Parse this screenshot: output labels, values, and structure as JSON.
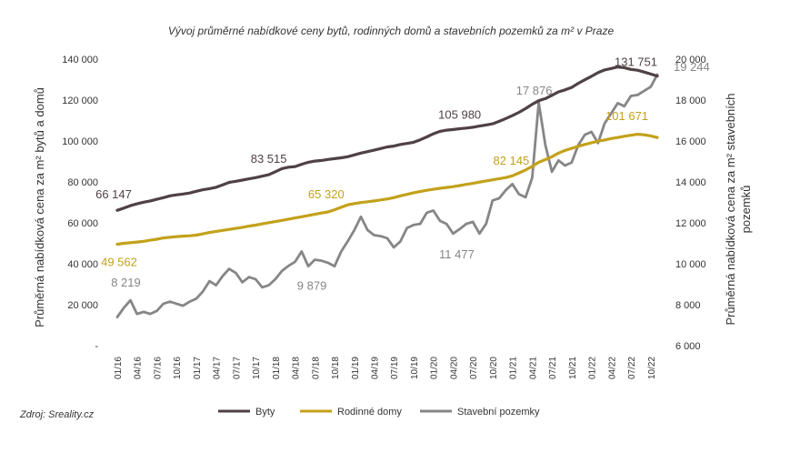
{
  "chart_data": {
    "type": "line",
    "title": "Vývoj průměrné nabídkové ceny bytů, rodinných domů a stavebních pozemků za m² v Praze",
    "source": "Zdroj: Sreality.cz",
    "left_axis": {
      "label": "Průměrná nabídková cena za m² bytů a domů",
      "ylim": [
        0,
        140000
      ],
      "ticks": [
        "-",
        "20 000",
        "40 000",
        "60 000",
        "80 000",
        "100 000",
        "120 000",
        "140 000"
      ]
    },
    "right_axis": {
      "label_line1": "Průměrná nabídková cena za m² stavebních",
      "label_line2": "pozemků",
      "ylim": [
        6000,
        20000
      ],
      "ticks": [
        "6 000",
        "8 000",
        "10 000",
        "12 000",
        "14 000",
        "16 000",
        "18 000",
        "20 000"
      ]
    },
    "x_tick_labels": [
      "01/16",
      "04/16",
      "07/16",
      "10/16",
      "01/17",
      "04/17",
      "07/17",
      "10/17",
      "01/18",
      "04/18",
      "07/18",
      "10/18",
      "01/19",
      "04/19",
      "07/19",
      "10/19",
      "01/20",
      "04/20",
      "07/20",
      "10/20",
      "01/21",
      "04/21",
      "07/21",
      "10/21",
      "01/22",
      "04/22",
      "07/22",
      "10/22"
    ],
    "grid": false,
    "legend_position": "bottom",
    "series": [
      {
        "name": "Byty",
        "axis": "left",
        "color": "#4f4144",
        "values": [
          66147,
          67200,
          68400,
          69300,
          70100,
          70700,
          71500,
          72300,
          73200,
          73700,
          74100,
          74600,
          75400,
          76200,
          76700,
          77400,
          78600,
          79800,
          80300,
          80900,
          81500,
          82100,
          82800,
          83515,
          85000,
          86500,
          87200,
          87500,
          88600,
          89600,
          90200,
          90500,
          91000,
          91400,
          91800,
          92300,
          93200,
          94100,
          94800,
          95500,
          96300,
          97100,
          97500,
          98300,
          98800,
          99400,
          100600,
          102000,
          103500,
          104700,
          105300,
          105600,
          105980,
          106300,
          106700,
          107300,
          107800,
          108400,
          109600,
          111000,
          112400,
          114000,
          115800,
          117900,
          119700,
          120700,
          122300,
          124000,
          125000,
          126200,
          128200,
          129900,
          131600,
          133400,
          134700,
          135400,
          136200,
          135800,
          135000,
          134600,
          133700,
          132700,
          131751
        ]
      },
      {
        "name": "Rodinné domy",
        "axis": "left",
        "color": "#c3a11a",
        "values": [
          49562,
          50000,
          50300,
          50600,
          51000,
          51500,
          52000,
          52600,
          53000,
          53300,
          53500,
          53700,
          54000,
          54600,
          55300,
          55800,
          56300,
          56800,
          57300,
          57800,
          58400,
          58900,
          59500,
          60100,
          60600,
          61200,
          61800,
          62400,
          63000,
          63600,
          64200,
          64800,
          65320,
          66400,
          67600,
          68800,
          69400,
          69900,
          70300,
          70700,
          71200,
          71700,
          72300,
          73200,
          73900,
          74700,
          75300,
          75900,
          76400,
          76900,
          77300,
          77700,
          78200,
          78800,
          79300,
          79900,
          80500,
          81000,
          81600,
          82145,
          83000,
          84400,
          85800,
          87600,
          89600,
          90900,
          92300,
          94100,
          95400,
          96400,
          97400,
          98300,
          99100,
          99900,
          100500,
          101200,
          101671,
          102300,
          102800,
          103300,
          103000,
          102500,
          101671
        ]
      },
      {
        "name": "Stavební pozemky",
        "axis": "right",
        "color": "#868686",
        "values": [
          7400,
          7850,
          8219,
          7550,
          7650,
          7550,
          7700,
          8050,
          8150,
          8050,
          7950,
          8150,
          8300,
          8650,
          9150,
          8950,
          9400,
          9750,
          9550,
          9100,
          9350,
          9250,
          8850,
          8950,
          9250,
          9650,
          9900,
          10100,
          10600,
          9879,
          10200,
          10150,
          10050,
          9879,
          10600,
          11100,
          11650,
          12300,
          11650,
          11400,
          11350,
          11250,
          10800,
          11100,
          11750,
          11900,
          11950,
          12500,
          12600,
          12100,
          11950,
          11477,
          11700,
          11950,
          12050,
          11477,
          11950,
          13100,
          13200,
          13600,
          13900,
          13400,
          13250,
          14200,
          17876,
          15800,
          14500,
          15050,
          14800,
          14950,
          15800,
          16300,
          16450,
          15900,
          16850,
          17350,
          17850,
          17700,
          18200,
          18250,
          18450,
          18650,
          19244
        ]
      }
    ],
    "annotations": [
      {
        "text": "66 147",
        "series": "Byty"
      },
      {
        "text": "83 515",
        "series": "Byty"
      },
      {
        "text": "105 980",
        "series": "Byty"
      },
      {
        "text": "131 751",
        "series": "Byty"
      },
      {
        "text": "49 562",
        "series": "Rodinné domy"
      },
      {
        "text": "65 320",
        "series": "Rodinné domy"
      },
      {
        "text": "82 145",
        "series": "Rodinné domy"
      },
      {
        "text": "101 671",
        "series": "Rodinné domy"
      },
      {
        "text": "8 219",
        "series": "Stavební pozemky"
      },
      {
        "text": "9 879",
        "series": "Stavební pozemky"
      },
      {
        "text": "11 477",
        "series": "Stavební pozemky"
      },
      {
        "text": "17 876",
        "series": "Stavební pozemky"
      },
      {
        "text": "19 244",
        "series": "Stavební pozemky"
      }
    ]
  }
}
